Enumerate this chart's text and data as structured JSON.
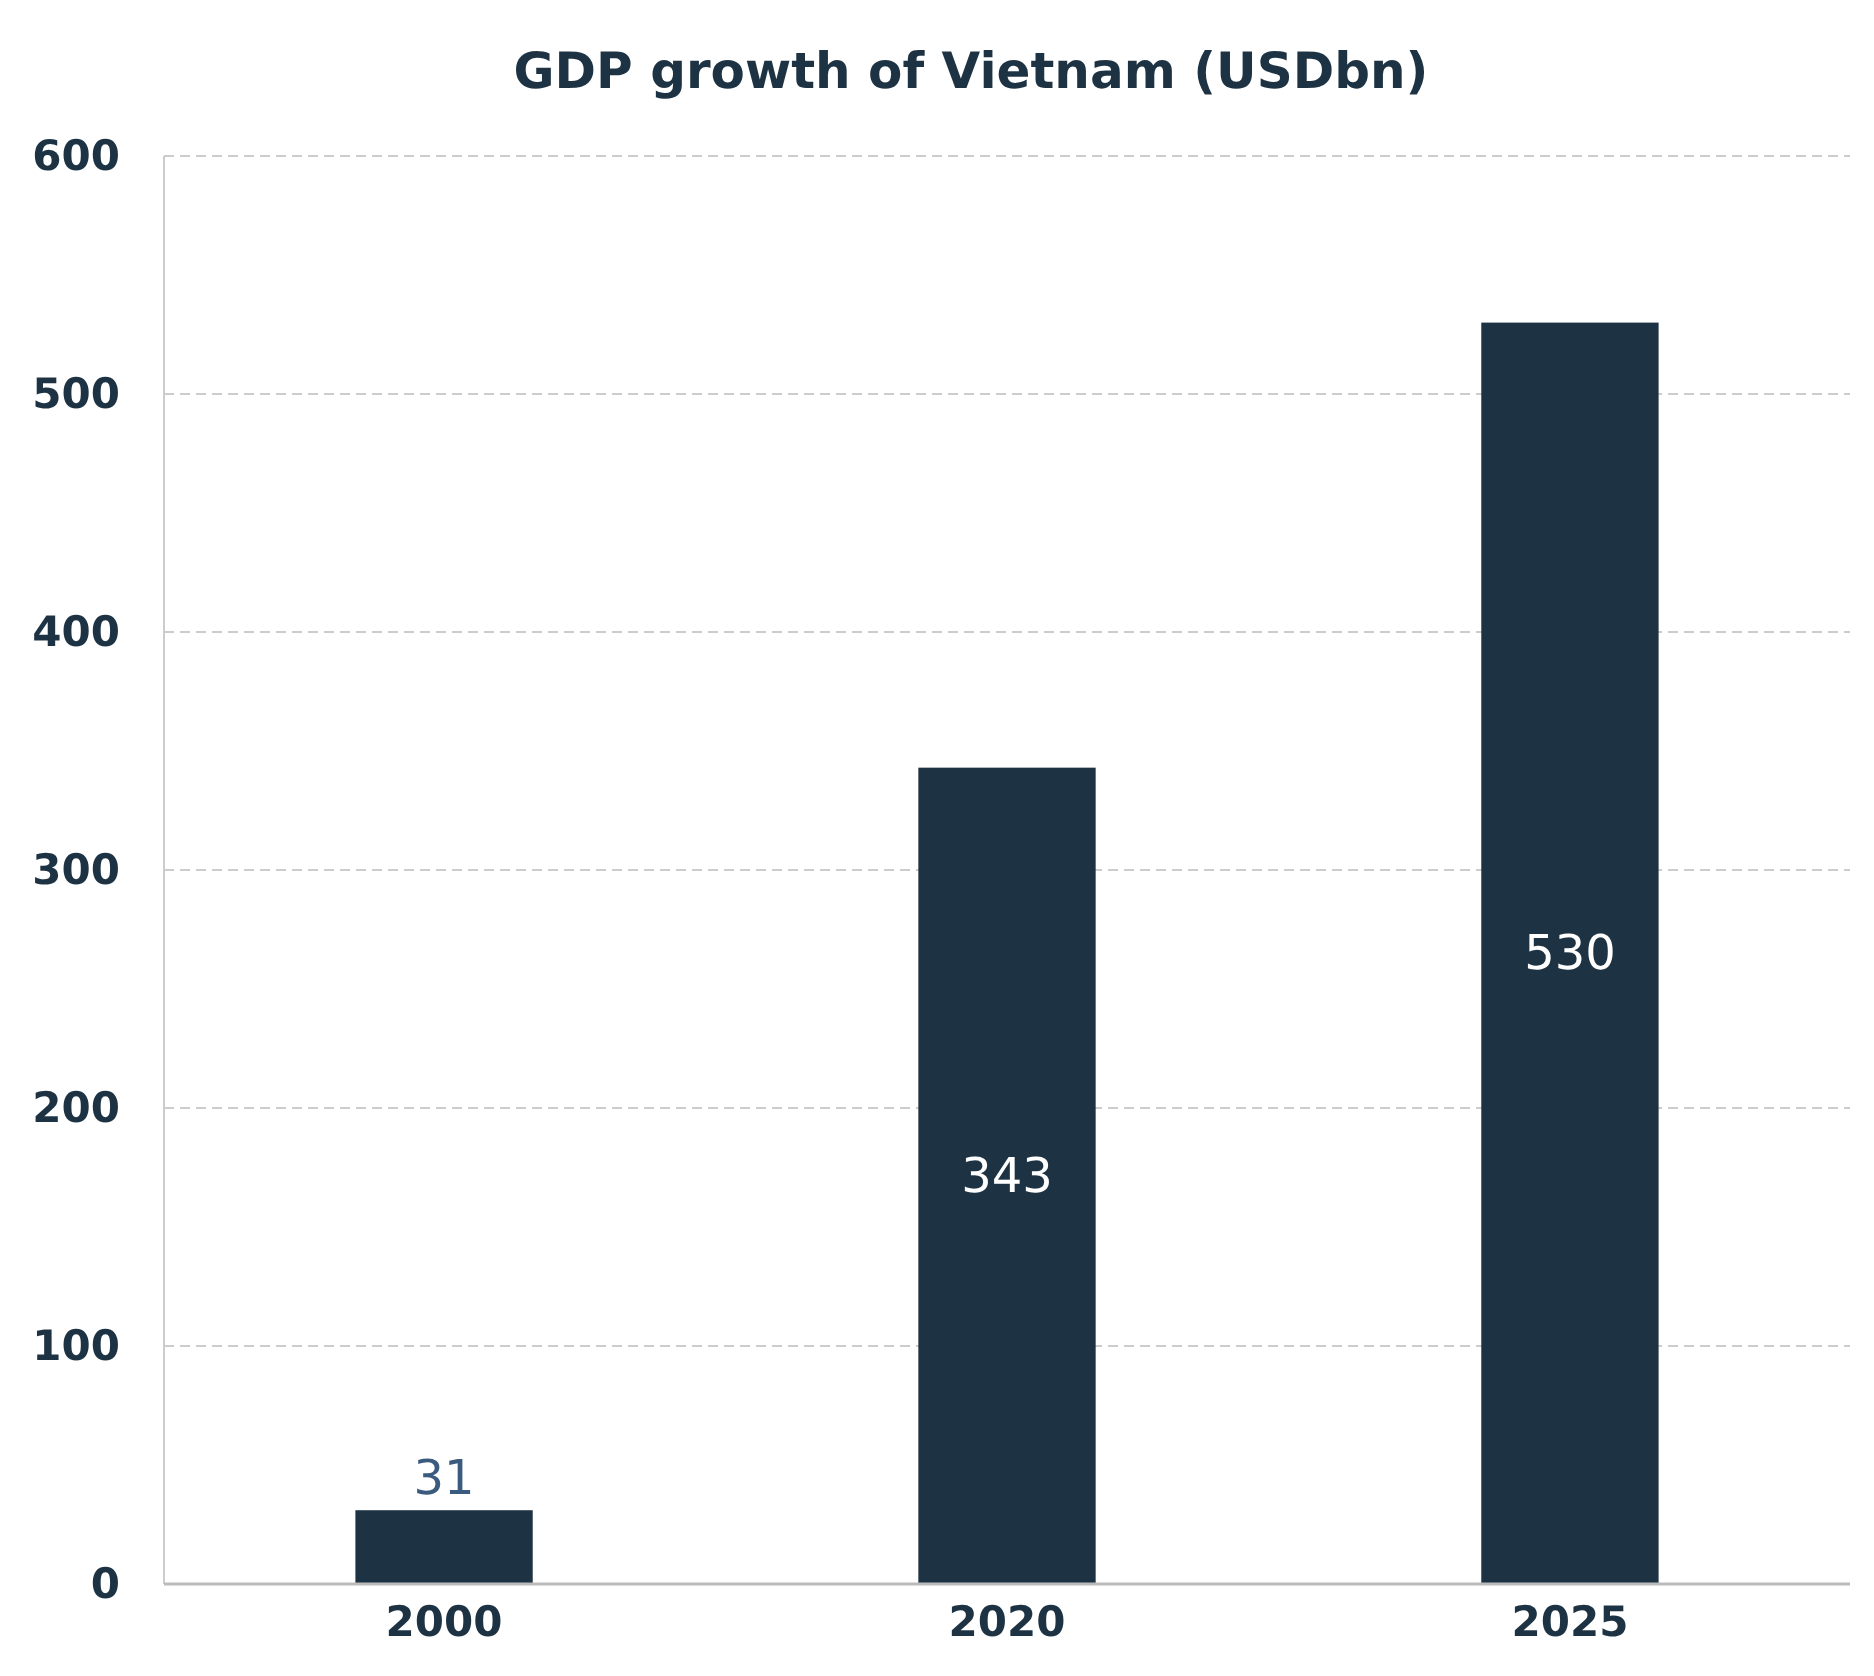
{
  "chart_data": {
    "type": "bar",
    "title": "GDP growth of Vietnam (USDbn)",
    "categories": [
      "2000",
      "2020",
      "2025"
    ],
    "values": [
      31,
      343,
      530
    ],
    "color": "#1d3344",
    "ylim": [
      0,
      600
    ],
    "yticks": [
      0,
      100,
      200,
      300,
      400,
      500,
      600
    ],
    "grid": "y",
    "data_labels": true
  }
}
